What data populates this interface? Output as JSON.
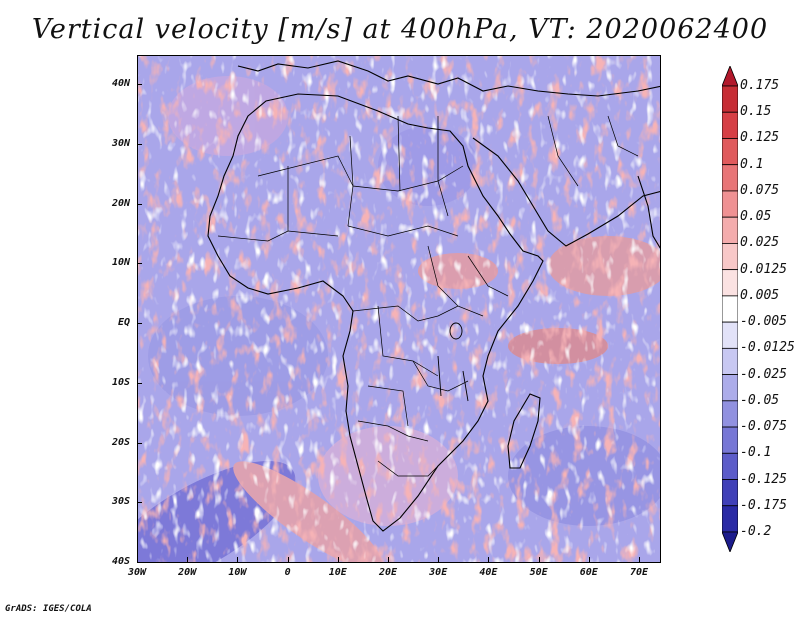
{
  "title": "Vertical velocity [m/s] at 400hPa, VT: 2020062400",
  "lat_labels": [
    "40N",
    "30N",
    "20N",
    "10N",
    "EQ",
    "10S",
    "20S",
    "30S",
    "40S"
  ],
  "lon_labels": [
    "30W",
    "20W",
    "10W",
    "0",
    "10E",
    "20E",
    "30E",
    "40E",
    "50E",
    "60E",
    "70E"
  ],
  "colorbar": {
    "labels": [
      "0.175",
      "0.15",
      "0.125",
      "0.1",
      "0.075",
      "0.05",
      "0.025",
      "0.0125",
      "0.005",
      "-0.005",
      "-0.0125",
      "-0.025",
      "-0.05",
      "-0.075",
      "-0.1",
      "-0.125",
      "-0.175",
      "-0.2"
    ],
    "colors": [
      "#b2182b",
      "#c72d35",
      "#d63f45",
      "#e05a5c",
      "#e87577",
      "#ef9193",
      "#f4acad",
      "#f8c8c8",
      "#fbe2e2",
      "#ffffff",
      "#e2e2f8",
      "#c8c8f2",
      "#acacea",
      "#9191e0",
      "#7777d6",
      "#5c5cc9",
      "#4040b8",
      "#2a2aa5",
      "#1c1c8c"
    ]
  },
  "credit": "GrADS: IGES/COLA"
}
